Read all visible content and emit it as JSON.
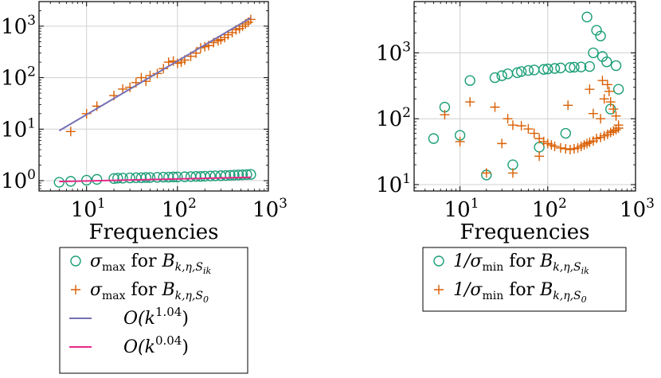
{
  "colors": {
    "teal": "#1b9e77",
    "orange": "#d95f02",
    "purple": "#7570b3",
    "pink": "#e7298a",
    "grid": "#d0d0d0"
  },
  "chart_data": [
    {
      "type": "scatter",
      "xlabel": "Frequencies",
      "ylabel": "",
      "xscale": "log",
      "yscale": "log",
      "xlim": [
        3,
        1000
      ],
      "ylim": [
        0.63,
        3000
      ],
      "xticks": [
        10,
        100,
        1000
      ],
      "xtick_labels": [
        {
          "b": "10",
          "e": "1"
        },
        {
          "b": "10",
          "e": "2"
        },
        {
          "b": "10",
          "e": "3"
        }
      ],
      "yticks": [
        1,
        10,
        100,
        1000
      ],
      "ytick_labels": [
        {
          "b": "10",
          "e": "0"
        },
        {
          "b": "10",
          "e": "1"
        },
        {
          "b": "10",
          "e": "2"
        },
        {
          "b": "10",
          "e": "3"
        }
      ],
      "grid": true,
      "legend_placement": "below",
      "series": [
        {
          "marker": "circle",
          "color": "teal",
          "legend": {
            "pre": "σ",
            "sub": "max",
            "mid": " for ",
            "B": "B",
            "bsub": "k,η,S",
            "bsubsub": "ik"
          },
          "points": [
            [
              5,
              0.93
            ],
            [
              6.7,
              0.97
            ],
            [
              10,
              1.02
            ],
            [
              13,
              1.06
            ],
            [
              20,
              1.1
            ],
            [
              22,
              1.12
            ],
            [
              25,
              1.12
            ],
            [
              30,
              1.13
            ],
            [
              35,
              1.14
            ],
            [
              40,
              1.14
            ],
            [
              45,
              1.15
            ],
            [
              50,
              1.15
            ],
            [
              60,
              1.16
            ],
            [
              70,
              1.17
            ],
            [
              80,
              1.17
            ],
            [
              90,
              1.18
            ],
            [
              100,
              1.18
            ],
            [
              120,
              1.19
            ],
            [
              140,
              1.2
            ],
            [
              160,
              1.21
            ],
            [
              180,
              1.21
            ],
            [
              200,
              1.22
            ],
            [
              230,
              1.23
            ],
            [
              260,
              1.24
            ],
            [
              300,
              1.25
            ],
            [
              340,
              1.26
            ],
            [
              380,
              1.27
            ],
            [
              420,
              1.28
            ],
            [
              470,
              1.29
            ],
            [
              520,
              1.3
            ],
            [
              580,
              1.31
            ],
            [
              640,
              1.32
            ]
          ]
        },
        {
          "marker": "plus",
          "color": "orange",
          "legend": {
            "pre": "σ",
            "sub": "max",
            "mid": " for ",
            "B": "B",
            "bsub": "k,η,S",
            "bsubsub": "0"
          },
          "points": [
            [
              6.7,
              9
            ],
            [
              10,
              20
            ],
            [
              13,
              28
            ],
            [
              20,
              45
            ],
            [
              25,
              60
            ],
            [
              30,
              65
            ],
            [
              35,
              80
            ],
            [
              40,
              100
            ],
            [
              45,
              85
            ],
            [
              50,
              110
            ],
            [
              60,
              120
            ],
            [
              70,
              150
            ],
            [
              80,
              200
            ],
            [
              90,
              210
            ],
            [
              100,
              190
            ],
            [
              110,
              200
            ],
            [
              120,
              220
            ],
            [
              140,
              260
            ],
            [
              160,
              300
            ],
            [
              180,
              380
            ],
            [
              200,
              400
            ],
            [
              220,
              420
            ],
            [
              250,
              480
            ],
            [
              280,
              520
            ],
            [
              300,
              550
            ],
            [
              330,
              600
            ],
            [
              360,
              680
            ],
            [
              400,
              750
            ],
            [
              440,
              850
            ],
            [
              480,
              900
            ],
            [
              520,
              1000
            ],
            [
              560,
              1100
            ],
            [
              600,
              1200
            ],
            [
              640,
              1350
            ]
          ]
        },
        {
          "marker": "line",
          "color": "purple",
          "legend": {
            "pre": "O(k",
            "sup": "1.04",
            "post": ")"
          },
          "x_range": [
            5,
            640
          ],
          "coef": 1.75,
          "exponent": 1.04
        },
        {
          "marker": "line",
          "color": "pink",
          "legend": {
            "pre": "O(k",
            "sup": "0.04",
            "post": ")"
          },
          "x_range": [
            5,
            640
          ],
          "coef": 0.9,
          "exponent": 0.04
        }
      ]
    },
    {
      "type": "scatter",
      "xlabel": "Frequencies",
      "ylabel": "",
      "xscale": "log",
      "yscale": "log",
      "xlim": [
        3,
        1000
      ],
      "ylim": [
        8,
        6000
      ],
      "xticks": [
        10,
        100,
        1000
      ],
      "xtick_labels": [
        {
          "b": "10",
          "e": "1"
        },
        {
          "b": "10",
          "e": "2"
        },
        {
          "b": "10",
          "e": "3"
        }
      ],
      "yticks": [
        10,
        100,
        1000
      ],
      "ytick_labels": [
        {
          "b": "10",
          "e": "1"
        },
        {
          "b": "10",
          "e": "2"
        },
        {
          "b": "10",
          "e": "3"
        }
      ],
      "grid": true,
      "legend_placement": "below",
      "series": [
        {
          "marker": "circle",
          "color": "teal",
          "legend": {
            "pre": "1/σ",
            "sub": "min",
            "mid": " for ",
            "B": "B",
            "bsub": "k,η,S",
            "bsubsub": "ik"
          },
          "points": [
            [
              5,
              50
            ],
            [
              6.7,
              150
            ],
            [
              10,
              56
            ],
            [
              13,
              380
            ],
            [
              20,
              14
            ],
            [
              25,
              420
            ],
            [
              30,
              450
            ],
            [
              35,
              480
            ],
            [
              40,
              20
            ],
            [
              45,
              500
            ],
            [
              50,
              520
            ],
            [
              60,
              540
            ],
            [
              70,
              550
            ],
            [
              80,
              37
            ],
            [
              90,
              560
            ],
            [
              100,
              570
            ],
            [
              120,
              580
            ],
            [
              140,
              590
            ],
            [
              160,
              60
            ],
            [
              180,
              600
            ],
            [
              200,
              605
            ],
            [
              240,
              610
            ],
            [
              280,
              3500
            ],
            [
              300,
              620
            ],
            [
              330,
              1000
            ],
            [
              360,
              2200
            ],
            [
              400,
              1800
            ],
            [
              420,
              880
            ],
            [
              470,
              730
            ],
            [
              520,
              140
            ],
            [
              600,
              640
            ],
            [
              640,
              280
            ]
          ]
        },
        {
          "marker": "plus",
          "color": "orange",
          "legend": {
            "pre": "1/σ",
            "sub": "min",
            "mid": " for ",
            "B": "B",
            "bsub": "k,η,S",
            "bsubsub": "0"
          },
          "points": [
            [
              6.7,
              115
            ],
            [
              10,
              45
            ],
            [
              13,
              180
            ],
            [
              20,
              15
            ],
            [
              25,
              150
            ],
            [
              30,
              42
            ],
            [
              35,
              100
            ],
            [
              40,
              15
            ],
            [
              40,
              80
            ],
            [
              50,
              78
            ],
            [
              60,
              70
            ],
            [
              70,
              60
            ],
            [
              80,
              27
            ],
            [
              80,
              50
            ],
            [
              90,
              45
            ],
            [
              100,
              42
            ],
            [
              110,
              40
            ],
            [
              120,
              38
            ],
            [
              140,
              36
            ],
            [
              160,
              35
            ],
            [
              170,
              160
            ],
            [
              180,
              34
            ],
            [
              200,
              35
            ],
            [
              220,
              36
            ],
            [
              240,
              38
            ],
            [
              260,
              40
            ],
            [
              280,
              42
            ],
            [
              300,
              280
            ],
            [
              300,
              44
            ],
            [
              330,
              46
            ],
            [
              360,
              50
            ],
            [
              400,
              52
            ],
            [
              420,
              380
            ],
            [
              440,
              55
            ],
            [
              480,
              58
            ],
            [
              520,
              62
            ],
            [
              560,
              65
            ],
            [
              600,
              68
            ],
            [
              640,
              72
            ],
            [
              330,
              120
            ],
            [
              400,
              100
            ],
            [
              440,
              200
            ],
            [
              480,
              330
            ],
            [
              500,
              260
            ],
            [
              520,
              180
            ],
            [
              560,
              140
            ],
            [
              600,
              110
            ],
            [
              640,
              80
            ]
          ]
        }
      ]
    }
  ]
}
